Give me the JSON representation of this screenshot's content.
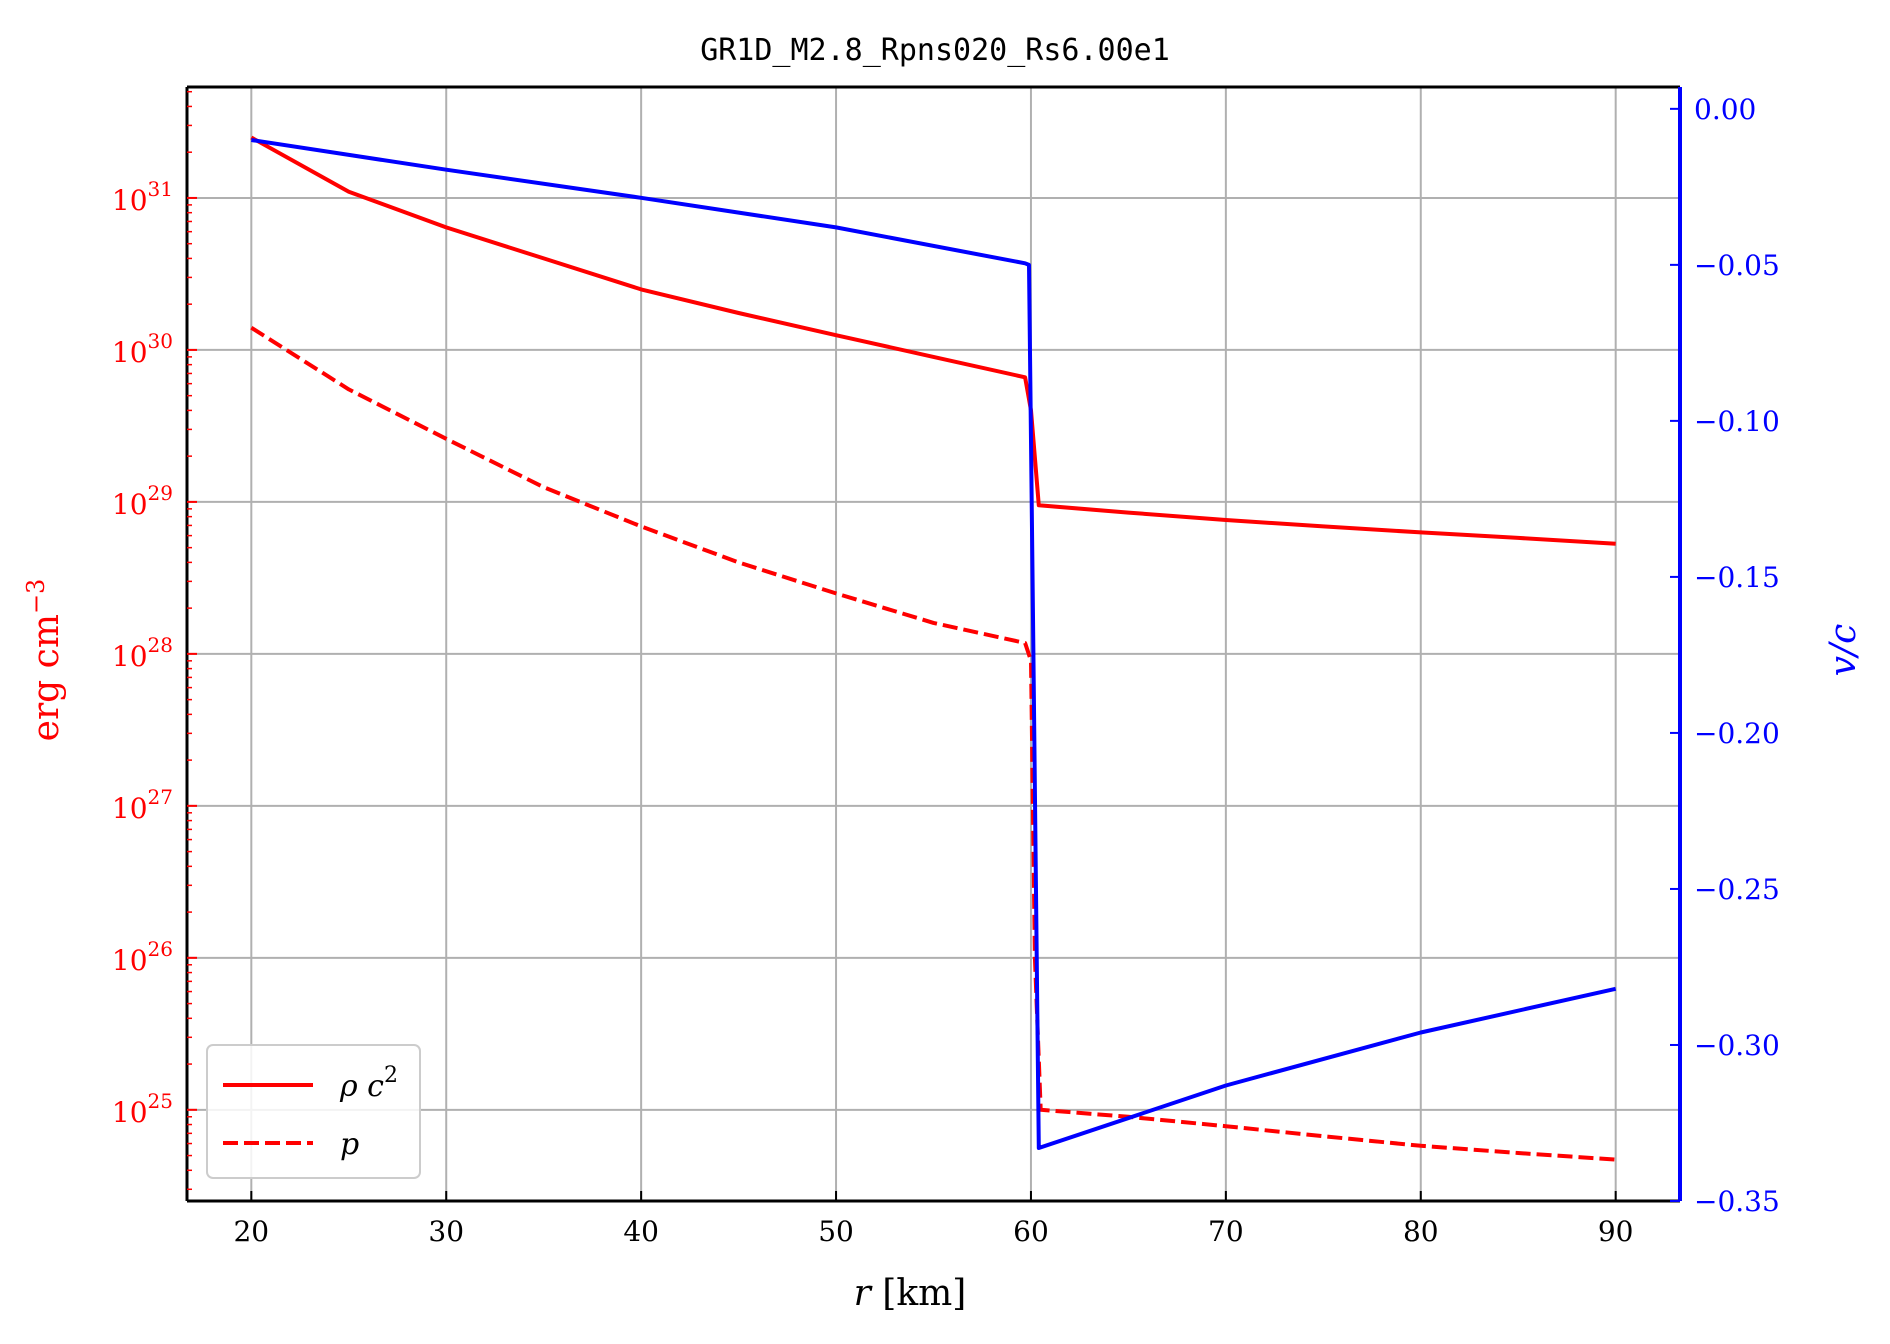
{
  "chart_data": {
    "type": "line",
    "title": "GR1D_M2.8_Rpns020_Rs6.00e1",
    "xlabel": "r  [km]",
    "ylabel_left": "erg cm^-3",
    "ylabel_right": "v/c",
    "xlim": [
      16.7,
      93.3
    ],
    "xticks": [
      20,
      30,
      40,
      50,
      60,
      70,
      80,
      90
    ],
    "ylim_left_log10": [
      24.4,
      31.73
    ],
    "yticks_left_exp": [
      25,
      26,
      27,
      28,
      29,
      30,
      31
    ],
    "ytick_left_base": "10",
    "ylim_right": [
      -0.35,
      0.007
    ],
    "yticks_right": [
      0.0,
      -0.05,
      -0.1,
      -0.15,
      -0.2,
      -0.25,
      -0.3,
      -0.35
    ],
    "ytick_right_labels": [
      "0.00",
      "−0.05",
      "−0.10",
      "−0.15",
      "−0.20",
      "−0.25",
      "−0.30",
      "−0.35"
    ],
    "left_scale": "log",
    "grid": true,
    "legend_placement": "lower-left",
    "colors": {
      "left_axis": "#ff0000",
      "right_axis": "#0000ff",
      "axes": "#000000",
      "grid": "#b0b0b0"
    },
    "series": [
      {
        "name": "ρ c²",
        "legend_label": "ρ c",
        "legend_sup": "2",
        "axis": "left",
        "color": "#ff0000",
        "dash": "solid",
        "x": [
          20,
          25,
          30,
          35,
          40,
          45,
          50,
          55,
          59.7,
          60.0,
          60.4,
          65,
          70,
          75,
          80,
          85,
          90
        ],
        "y": [
          2.5e+31,
          1.1e+31,
          6.4e+30,
          4e+30,
          2.5e+30,
          1.75e+30,
          1.25e+30,
          9e+29,
          6.6e+29,
          4e+29,
          9.5e+28,
          8.5e+28,
          7.6e+28,
          6.9e+28,
          6.3e+28,
          5.8e+28,
          5.3e+28
        ]
      },
      {
        "name": "p",
        "legend_label": "p",
        "axis": "left",
        "color": "#ff0000",
        "dash": "dashed",
        "x": [
          20,
          25,
          30,
          35,
          40,
          45,
          50,
          55,
          59.7,
          60.0,
          60.2,
          60.5,
          65,
          70,
          75,
          80,
          85,
          90
        ],
        "y": [
          1.4e+30,
          5.5e+29,
          2.6e+29,
          1.25e+29,
          6.9e+28,
          4e+28,
          2.5e+28,
          1.6e+28,
          1.18e+28,
          9e+27,
          1e+26,
          1e+25,
          9e+24,
          7.8e+24,
          6.7e+24,
          5.8e+24,
          5.2e+24,
          4.7e+24
        ]
      },
      {
        "name": "v/c",
        "axis": "right",
        "color": "#0000ff",
        "dash": "solid",
        "x": [
          20,
          30,
          40,
          50,
          59.7,
          59.9,
          60.1,
          60.4,
          70,
          80,
          90
        ],
        "y": [
          -0.01,
          -0.0195,
          -0.0285,
          -0.038,
          -0.0495,
          -0.05,
          -0.16,
          -0.333,
          -0.313,
          -0.296,
          -0.282
        ]
      }
    ]
  }
}
